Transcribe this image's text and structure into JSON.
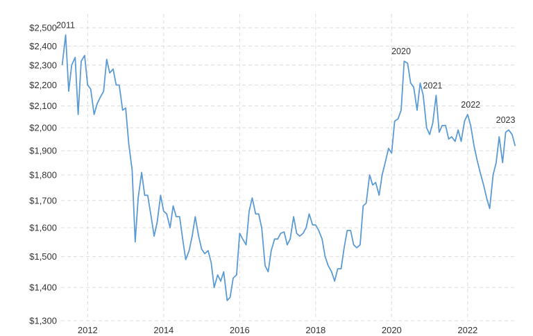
{
  "chart_data": {
    "type": "line",
    "title": "",
    "xlabel": "",
    "ylabel": "",
    "y_scale": "log",
    "grid": true,
    "ylim": [
      1300,
      2500
    ],
    "xlim": [
      2011.3,
      2023.3
    ],
    "y_ticks": [
      1300,
      1400,
      1500,
      1600,
      1700,
      1800,
      1900,
      2000,
      2100,
      2200,
      2300,
      2400,
      2500
    ],
    "y_tick_labels": [
      "$1,300",
      "$1,400",
      "$1,500",
      "$1,600",
      "$1,700",
      "$1,800",
      "$1,900",
      "$2,000",
      "$2,100",
      "$2,200",
      "$2,300",
      "$2,400",
      "$2,500"
    ],
    "x_ticks": [
      2012,
      2014,
      2016,
      2018,
      2020,
      2022
    ],
    "x_tick_labels": [
      "2012",
      "2014",
      "2016",
      "2018",
      "2020",
      "2022"
    ],
    "line_color": "#5b9bd5",
    "series": [
      {
        "x": [
          2011.33,
          2011.42,
          2011.5,
          2011.58,
          2011.67,
          2011.75,
          2011.83,
          2011.92,
          2012.0,
          2012.08,
          2012.17,
          2012.25,
          2012.33,
          2012.42,
          2012.5,
          2012.58,
          2012.67,
          2012.75,
          2012.83,
          2012.92,
          2013.0,
          2013.08,
          2013.17,
          2013.25,
          2013.33,
          2013.42,
          2013.5,
          2013.58,
          2013.67,
          2013.75,
          2013.83,
          2013.92,
          2014.0,
          2014.08,
          2014.17,
          2014.25,
          2014.33,
          2014.42,
          2014.5,
          2014.58,
          2014.67,
          2014.75,
          2014.83,
          2014.92,
          2015.0,
          2015.08,
          2015.17,
          2015.25,
          2015.33,
          2015.42,
          2015.5,
          2015.58,
          2015.67,
          2015.75,
          2015.83,
          2015.92,
          2016.0,
          2016.08,
          2016.17,
          2016.25,
          2016.33,
          2016.42,
          2016.5,
          2016.58,
          2016.67,
          2016.75,
          2016.83,
          2016.92,
          2017.0,
          2017.08,
          2017.17,
          2017.25,
          2017.33,
          2017.42,
          2017.5,
          2017.58,
          2017.67,
          2017.75,
          2017.83,
          2017.92,
          2018.0,
          2018.08,
          2018.17,
          2018.25,
          2018.33,
          2018.42,
          2018.5,
          2018.58,
          2018.67,
          2018.75,
          2018.83,
          2018.92,
          2019.0,
          2019.08,
          2019.17,
          2019.25,
          2019.33,
          2019.42,
          2019.5,
          2019.58,
          2019.67,
          2019.75,
          2019.83,
          2019.92,
          2020.0,
          2020.08,
          2020.17,
          2020.25,
          2020.33,
          2020.42,
          2020.5,
          2020.58,
          2020.67,
          2020.75,
          2020.83,
          2020.92,
          2021.0,
          2021.08,
          2021.17,
          2021.25,
          2021.33,
          2021.42,
          2021.5,
          2021.58,
          2021.67,
          2021.75,
          2021.83,
          2021.92,
          2022.0,
          2022.08,
          2022.17,
          2022.25,
          2022.33,
          2022.42,
          2022.5,
          2022.58,
          2022.67,
          2022.75,
          2022.83,
          2022.92,
          2023.0,
          2023.08,
          2023.17,
          2023.25
        ],
        "values": [
          2300,
          2460,
          2170,
          2300,
          2340,
          2060,
          2320,
          2350,
          2200,
          2180,
          2060,
          2110,
          2140,
          2170,
          2330,
          2260,
          2280,
          2200,
          2200,
          2080,
          2090,
          1930,
          1820,
          1550,
          1710,
          1810,
          1720,
          1720,
          1640,
          1570,
          1620,
          1720,
          1660,
          1650,
          1600,
          1680,
          1640,
          1640,
          1560,
          1490,
          1520,
          1570,
          1640,
          1570,
          1525,
          1510,
          1520,
          1480,
          1400,
          1440,
          1420,
          1450,
          1360,
          1370,
          1430,
          1440,
          1580,
          1560,
          1540,
          1660,
          1710,
          1650,
          1650,
          1600,
          1470,
          1450,
          1520,
          1560,
          1560,
          1580,
          1585,
          1540,
          1560,
          1640,
          1580,
          1570,
          1580,
          1600,
          1650,
          1610,
          1610,
          1590,
          1560,
          1500,
          1470,
          1450,
          1420,
          1460,
          1460,
          1530,
          1590,
          1590,
          1540,
          1530,
          1540,
          1680,
          1690,
          1800,
          1760,
          1770,
          1720,
          1800,
          1850,
          1910,
          1890,
          2030,
          2040,
          2080,
          2320,
          2310,
          2210,
          2190,
          2080,
          2210,
          2150,
          2000,
          1970,
          2020,
          2150,
          1980,
          2010,
          2010,
          1950,
          1960,
          1940,
          1990,
          1940,
          2030,
          2060,
          2010,
          1920,
          1860,
          1810,
          1760,
          1710,
          1670,
          1800,
          1850,
          1960,
          1850,
          1980,
          1990,
          1970,
          1920
        ]
      }
    ],
    "annotations": [
      {
        "text": "2011",
        "x": 2011.42,
        "y": 2460
      },
      {
        "text": "2020",
        "x": 2020.25,
        "y": 2320
      },
      {
        "text": "2021",
        "x": 2021.08,
        "y": 2150
      },
      {
        "text": "2022",
        "x": 2022.08,
        "y": 2060
      },
      {
        "text": "2023",
        "x": 2023.0,
        "y": 1990
      }
    ]
  }
}
